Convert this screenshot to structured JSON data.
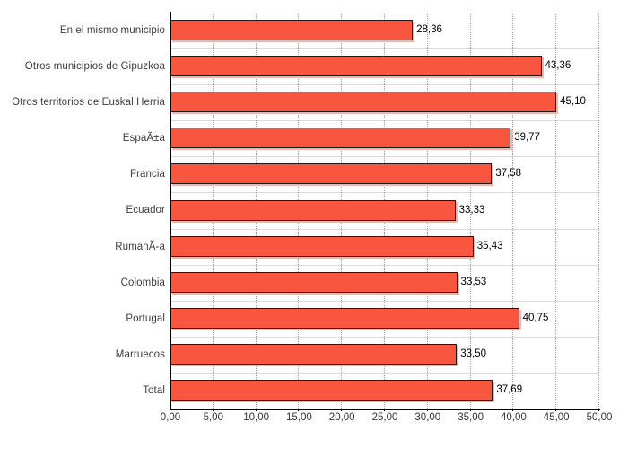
{
  "chart_data": {
    "type": "bar",
    "orientation": "horizontal",
    "title": "",
    "xlabel": "",
    "ylabel": "",
    "categories": [
      "En el mismo municipio",
      "Otros municipios de Gipuzkoa",
      "Otros territorios de Euskal Herria",
      "EspaÃ±a",
      "Francia",
      "Ecuador",
      "RumanÃ-a",
      "Colombia",
      "Portugal",
      "Marruecos",
      "Total"
    ],
    "values": [
      28.36,
      43.36,
      45.1,
      39.77,
      37.58,
      33.33,
      35.43,
      33.53,
      40.75,
      33.5,
      37.69
    ],
    "value_labels": [
      "28,36",
      "43,36",
      "45,10",
      "39,77",
      "37,58",
      "33,33",
      "35,43",
      "33,53",
      "40,75",
      "33,50",
      "37,69"
    ],
    "xlim": [
      0,
      50
    ],
    "x_ticks": [
      {
        "value": 0,
        "label": "0,00"
      },
      {
        "value": 5,
        "label": "5,00"
      },
      {
        "value": 10,
        "label": "10,00"
      },
      {
        "value": 15,
        "label": "15,00"
      },
      {
        "value": 20,
        "label": "20,00"
      },
      {
        "value": 25,
        "label": "25,00"
      },
      {
        "value": 30,
        "label": "30,00"
      },
      {
        "value": 35,
        "label": "35,00"
      },
      {
        "value": 40,
        "label": "40,00"
      },
      {
        "value": 45,
        "label": "45,00"
      },
      {
        "value": 50,
        "label": "50,00"
      }
    ],
    "grid": {
      "vertical": "dotted",
      "horizontal": "solid-light",
      "legend_position": "none"
    },
    "colors": {
      "bar_fill": "#F9563F",
      "bar_border": "#1A1A1A",
      "bar_shadow": "#F5B3A8",
      "grid_dotted": "#999999",
      "row_line": "#DBDBDB",
      "axis": "#000000",
      "category_text": "#3D3D3D",
      "value_text": "#000000",
      "tick_text": "#333333"
    }
  }
}
